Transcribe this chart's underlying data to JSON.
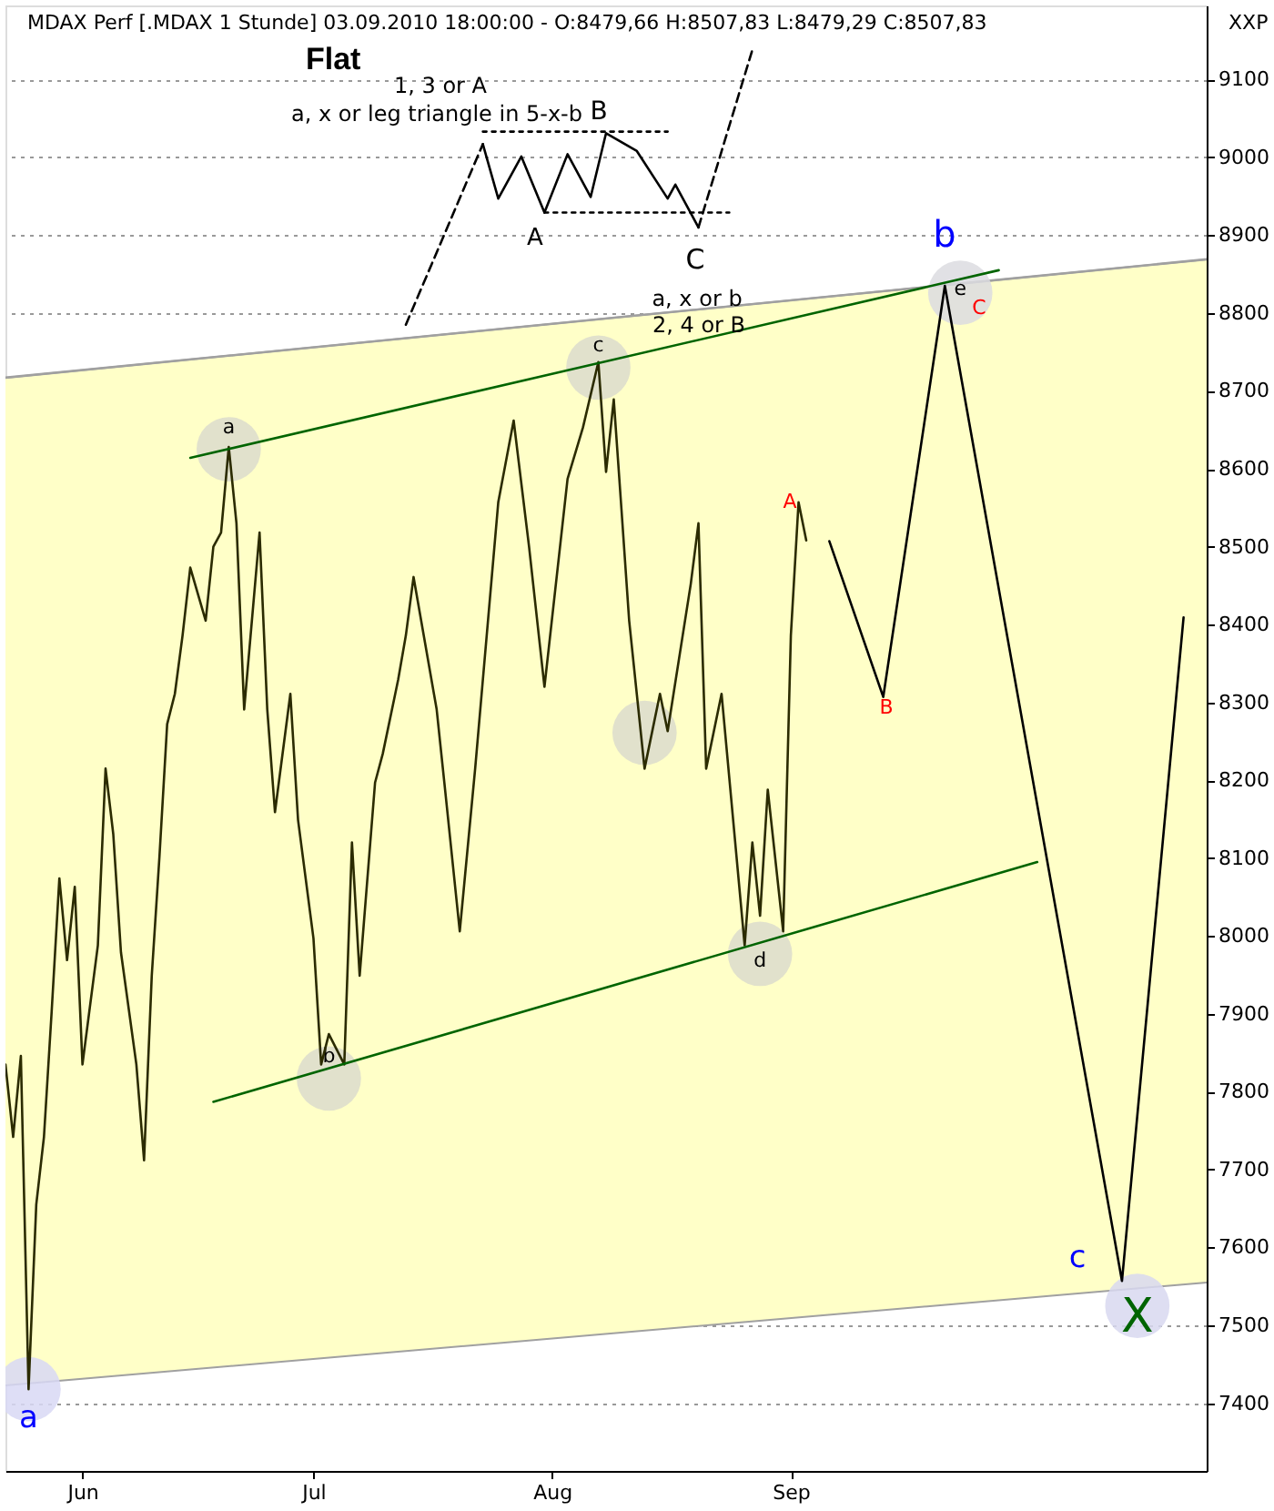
{
  "chart_data": {
    "type": "line",
    "title": "MDAX Perf [.MDAX  1 Stunde] 03.09.2010 18:00:00 - O:8479,66 H:8507,83 L:8479,29 C:8507,83",
    "subtitle": "Flat",
    "ylabel": "XXP",
    "xlim": [
      "2010-05-22",
      "2010-10-25"
    ],
    "xticks": [
      {
        "value": "2010-06-01",
        "label": "Jun"
      },
      {
        "value": "2010-07-01",
        "label": "Jul"
      },
      {
        "value": "2010-08-01",
        "label": "Aug"
      },
      {
        "value": "2010-09-01",
        "label": "Sep"
      }
    ],
    "ylim": [
      7313,
      9195
    ],
    "yticks": [
      7400,
      7500,
      7600,
      7700,
      7800,
      7900,
      8000,
      8100,
      8200,
      8300,
      8400,
      8500,
      8600,
      8700,
      8800,
      8900,
      9000,
      9100
    ],
    "grid": "y",
    "marker": "none",
    "series": [
      {
        "type": "line",
        "color": "#a0a0a0",
        "line_style": "solid",
        "x": [
          "2010-05-22",
          "2010-10-25"
        ],
        "values": [
          8717,
          8869
        ],
        "upper": [
          8717,
          8869
        ],
        "lower": [
          7423,
          7555
        ]
      },
      {
        "type": "line",
        "color": "#2b2b00",
        "line_style": "solid",
        "x": [
          "2010-05-22",
          "2010-05-23",
          "2010-05-24",
          "2010-05-25",
          "2010-05-26",
          "2010-05-27",
          "2010-05-28",
          "2010-05-29",
          "2010-05-30",
          "2010-05-31",
          "2010-06-01",
          "2010-06-03",
          "2010-06-04",
          "2010-06-05",
          "2010-06-06",
          "2010-06-08",
          "2010-06-09",
          "2010-06-10",
          "2010-06-11",
          "2010-06-12",
          "2010-06-13",
          "2010-06-14",
          "2010-06-15",
          "2010-06-17",
          "2010-06-18",
          "2010-06-19",
          "2010-06-20",
          "2010-06-21",
          "2010-06-22",
          "2010-06-24",
          "2010-06-25",
          "2010-06-26",
          "2010-06-28",
          "2010-06-29",
          "2010-07-01",
          "2010-07-02",
          "2010-07-03",
          "2010-07-05",
          "2010-07-06",
          "2010-07-07",
          "2010-07-09",
          "2010-07-10",
          "2010-07-12",
          "2010-07-13",
          "2010-07-14",
          "2010-07-17",
          "2010-07-18",
          "2010-07-20",
          "2010-07-22",
          "2010-07-25",
          "2010-07-27",
          "2010-07-29",
          "2010-07-31",
          "2010-08-03",
          "2010-08-05",
          "2010-08-07",
          "2010-08-08",
          "2010-08-09",
          "2010-08-10",
          "2010-08-11",
          "2010-08-13",
          "2010-08-15",
          "2010-08-16",
          "2010-08-19",
          "2010-08-20",
          "2010-08-21",
          "2010-08-23",
          "2010-08-26",
          "2010-08-27",
          "2010-08-28",
          "2010-08-29",
          "2010-08-31",
          "2010-09-01",
          "2010-09-02",
          "2010-09-03"
        ],
        "values": [
          7835,
          7742,
          7846,
          7418,
          7655,
          7742,
          7903,
          8074,
          7969,
          8063,
          7835,
          7988,
          8215,
          8131,
          7979,
          7835,
          7712,
          7949,
          8102,
          8272,
          8311,
          8386,
          8473,
          8405,
          8500,
          8518,
          8628,
          8530,
          8291,
          8518,
          8291,
          8159,
          8311,
          8149,
          7997,
          7835,
          7874,
          7835,
          8120,
          7949,
          8197,
          8234,
          8329,
          8386,
          8461,
          8291,
          8197,
          8006,
          8215,
          8557,
          8662,
          8500,
          8320,
          8587,
          8653,
          8737,
          8596,
          8689,
          8548,
          8405,
          8215,
          8311,
          8263,
          8452,
          8530,
          8215,
          8311,
          7988,
          8120,
          8026,
          8188,
          8006,
          8386,
          8557,
          8508
        ]
      },
      {
        "type": "line",
        "color": "#006400",
        "line_style": "solid",
        "x": [
          "2010-06-15",
          "2010-09-28"
        ],
        "values": [
          8614,
          8855
        ]
      },
      {
        "type": "line",
        "color": "#006400",
        "line_style": "solid",
        "x": [
          "2010-06-18",
          "2010-10-03"
        ],
        "values": [
          7787,
          8095
        ]
      },
      {
        "type": "line",
        "color": "#000000",
        "line_style": "solid",
        "x": [
          "2010-09-06",
          "2010-09-13",
          "2010-09-21",
          "2010-10-14",
          "2010-10-22"
        ],
        "values": [
          8507,
          8307,
          8835,
          7557,
          8409
        ]
      },
      {
        "type": "scatter",
        "marker": "circle",
        "value_labels": [
          "a",
          "a",
          "b",
          "c",
          null,
          "d",
          "e",
          "X"
        ],
        "colors": [
          "#d8d8f4",
          "#dcdccc",
          "#dcdccc",
          "#dcdccc",
          "#dcdccc",
          "#dcdccc",
          "#dcdce0",
          "#d8d8f0"
        ],
        "x": [
          "2010-05-25",
          "2010-06-20",
          "2010-07-03",
          "2010-08-07",
          "2010-08-13",
          "2010-08-28",
          "2010-09-23",
          "2010-10-16"
        ],
        "values": [
          7418,
          8625,
          7817,
          8730,
          8261,
          7977,
          8826,
          7525
        ]
      },
      {
        "type": "line",
        "color": "#000000",
        "line_style": "solid",
        "x": [
          "2010-07-23",
          "2010-07-25",
          "2010-07-28",
          "2010-07-31",
          "2010-08-03",
          "2010-08-06",
          "2010-08-08",
          "2010-08-12",
          "2010-08-16",
          "2010-08-17",
          "2010-08-20"
        ],
        "values": [
          9017,
          8947,
          9001,
          8929,
          9004,
          8949,
          9031,
          9008,
          8947,
          8965,
          8910
        ]
      },
      {
        "type": "line",
        "color": "#000000",
        "line_style": "dashed",
        "x": [
          "2010-07-13",
          "2010-07-23"
        ],
        "values": [
          8785,
          9017
        ]
      },
      {
        "type": "line",
        "color": "#000000",
        "line_style": "dashed",
        "x": [
          "2010-08-20",
          "2010-08-27"
        ],
        "values": [
          8910,
          9138
        ]
      },
      {
        "type": "line",
        "color": "#000000",
        "line_style": "dotted",
        "x": [
          "2010-07-23",
          "2010-08-16"
        ],
        "values": [
          9033,
          9033
        ]
      },
      {
        "type": "line",
        "color": "#000000",
        "line_style": "dotted",
        "x": [
          "2010-07-31",
          "2010-08-24"
        ],
        "values": [
          8929,
          8929
        ]
      }
    ],
    "annotations": [
      "C",
      "A",
      "B",
      "b",
      "c",
      "1, 3 or A",
      "a, x or leg triangle in 5-x-b",
      "B",
      "A",
      "C",
      "a, x or b",
      "2, 4 or B"
    ]
  }
}
